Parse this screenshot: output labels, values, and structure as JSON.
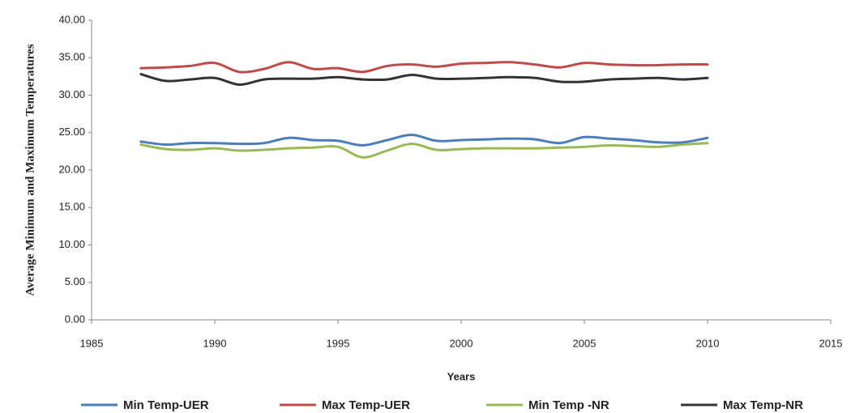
{
  "chart_data": {
    "type": "line",
    "x_label": "Years",
    "y_label": "Average Minimum and Maximum Temperatures",
    "x": [
      1987,
      1988,
      1989,
      1990,
      1991,
      1992,
      1993,
      1994,
      1995,
      1996,
      1997,
      1998,
      1999,
      2000,
      2001,
      2002,
      2003,
      2004,
      2005,
      2006,
      2007,
      2008,
      2009,
      2010
    ],
    "series": [
      {
        "name": "Min Temp-UER",
        "color": "#4a7ebb",
        "values": [
          23.8,
          23.4,
          23.6,
          23.6,
          23.5,
          23.6,
          24.3,
          24.0,
          23.9,
          23.3,
          24.0,
          24.7,
          23.9,
          24.0,
          24.1,
          24.2,
          24.1,
          23.6,
          24.4,
          24.2,
          24.0,
          23.7,
          23.7,
          24.3
        ]
      },
      {
        "name": "Max Temp-UER",
        "color": "#be4b48",
        "values": [
          33.6,
          33.7,
          33.9,
          34.3,
          33.1,
          33.5,
          34.4,
          33.5,
          33.6,
          33.1,
          33.9,
          34.1,
          33.8,
          34.2,
          34.3,
          34.4,
          34.1,
          33.7,
          34.3,
          34.1,
          34.0,
          34.0,
          34.1,
          34.1
        ]
      },
      {
        "name": "Min Temp -NR",
        "color": "#98b954",
        "values": [
          23.4,
          22.8,
          22.7,
          22.9,
          22.6,
          22.7,
          22.9,
          23.0,
          23.1,
          21.7,
          22.6,
          23.5,
          22.7,
          22.8,
          22.9,
          22.9,
          22.9,
          23.0,
          23.1,
          23.3,
          23.2,
          23.1,
          23.4,
          23.6
        ]
      },
      {
        "name": "Max Temp-NR",
        "color": "#333333",
        "values": [
          32.8,
          31.9,
          32.1,
          32.3,
          31.4,
          32.1,
          32.2,
          32.2,
          32.4,
          32.1,
          32.1,
          32.7,
          32.2,
          32.2,
          32.3,
          32.4,
          32.3,
          31.8,
          31.8,
          32.1,
          32.2,
          32.3,
          32.1,
          32.3
        ]
      }
    ],
    "xlim": [
      1985,
      2015
    ],
    "xticks": [
      1985,
      1990,
      1995,
      2000,
      2005,
      2010,
      2015
    ],
    "ylim": [
      0,
      40
    ],
    "yticks": [
      {
        "value": 0,
        "label": "0.00"
      },
      {
        "value": 5,
        "label": "5.00"
      },
      {
        "value": 10,
        "label": "10.00"
      },
      {
        "value": 15,
        "label": "15.00"
      },
      {
        "value": 20,
        "label": "20.00"
      },
      {
        "value": 25,
        "label": "25.00"
      },
      {
        "value": 30,
        "label": "30.00"
      },
      {
        "value": 35,
        "label": "35.00"
      },
      {
        "value": 40,
        "label": "40.00"
      }
    ],
    "grid": false,
    "legend": "bottom"
  }
}
